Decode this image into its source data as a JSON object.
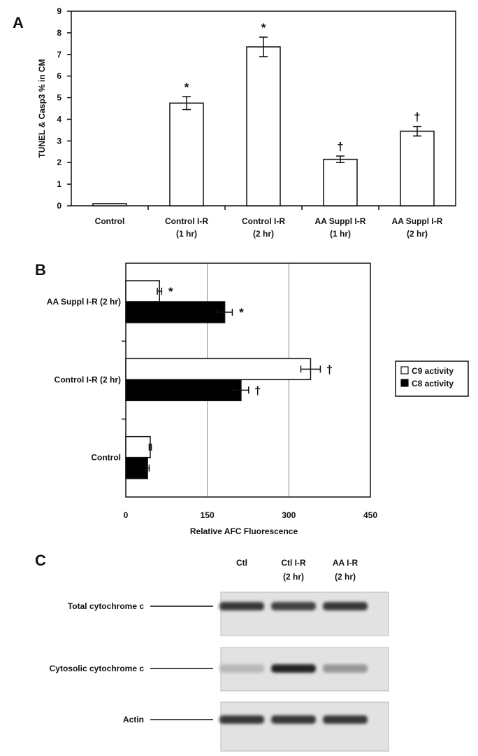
{
  "chart_data": [
    {
      "panel": "A",
      "type": "bar",
      "ylabel": "TUNEL & Casp3 % in CM",
      "ylim": [
        0,
        9
      ],
      "yticks": [
        "0",
        "1",
        "2",
        "3",
        "4",
        "5",
        "6",
        "7",
        "8",
        "9"
      ],
      "categories": [
        [
          "Control"
        ],
        [
          "Control I-R",
          "(1 hr)"
        ],
        [
          "Control I-R",
          "(2 hr)"
        ],
        [
          "AA Suppl I-R",
          "(1 hr)"
        ],
        [
          "AA Suppl I-R",
          "(2 hr)"
        ]
      ],
      "values": [
        0.1,
        4.75,
        7.35,
        2.15,
        3.45
      ],
      "errors": [
        0.03,
        0.3,
        0.45,
        0.15,
        0.22
      ],
      "annotations": [
        "",
        "*",
        "*",
        "†",
        "†"
      ],
      "grid": false
    },
    {
      "panel": "B",
      "type": "bar",
      "orientation": "horizontal",
      "xlabel": "Relative AFC Fluorescence",
      "xlim": [
        0,
        450
      ],
      "xticks": [
        "0",
        "150",
        "300",
        "450"
      ],
      "categories": [
        "AA Suppl I-R (2 hr)",
        "Control I-R (2 hr)",
        "Control"
      ],
      "series": [
        {
          "name": "C9 activity",
          "color": "#ffffff",
          "values": [
            62,
            340,
            45
          ],
          "errors": [
            4,
            18,
            2
          ],
          "annotations": [
            "*",
            "†",
            ""
          ]
        },
        {
          "name": "C8 activity",
          "color": "#000000",
          "values": [
            182,
            212,
            40
          ],
          "errors": [
            14,
            14,
            3
          ],
          "annotations": [
            "*",
            "†",
            ""
          ]
        }
      ],
      "grid": true,
      "legend_position": "right"
    }
  ],
  "panel_c": {
    "letter": "C",
    "lanes": [
      [
        "Ctl"
      ],
      [
        "Ctl I-R",
        "(2 hr)"
      ],
      [
        "AA I-R",
        "(2 hr)"
      ]
    ],
    "blots": [
      {
        "label": "Total cytochrome c",
        "intensity": [
          0.85,
          0.8,
          0.85
        ]
      },
      {
        "label": "Cytosolic cytochrome c",
        "intensity": [
          0.25,
          0.95,
          0.4
        ]
      },
      {
        "label": "Actin",
        "intensity": [
          0.85,
          0.85,
          0.85
        ]
      }
    ]
  }
}
